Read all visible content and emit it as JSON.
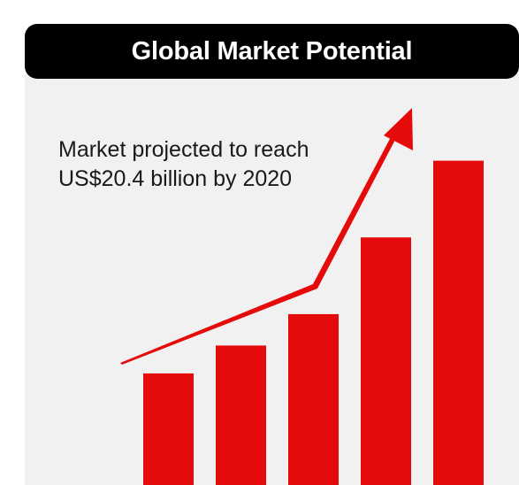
{
  "title": "Global Market Potential",
  "annotation": {
    "line1": "Market projected to reach",
    "line2": "US$20.4 billion by 2020"
  },
  "colors": {
    "bar": "#e60b0b",
    "arrow": "#e60b0b",
    "title_bg": "#000000",
    "panel_bg": "#f1f1f1"
  },
  "icons": {
    "trend": "trend-arrow-icon"
  },
  "chart_data": {
    "type": "bar",
    "categories": [
      "",
      "",
      "",
      "",
      ""
    ],
    "values": [
      32,
      40,
      49,
      71,
      93
    ],
    "title": "Global Market Potential",
    "xlabel": "",
    "ylabel": "",
    "ylim": [
      0,
      100
    ],
    "grid": false,
    "legend": "none"
  }
}
